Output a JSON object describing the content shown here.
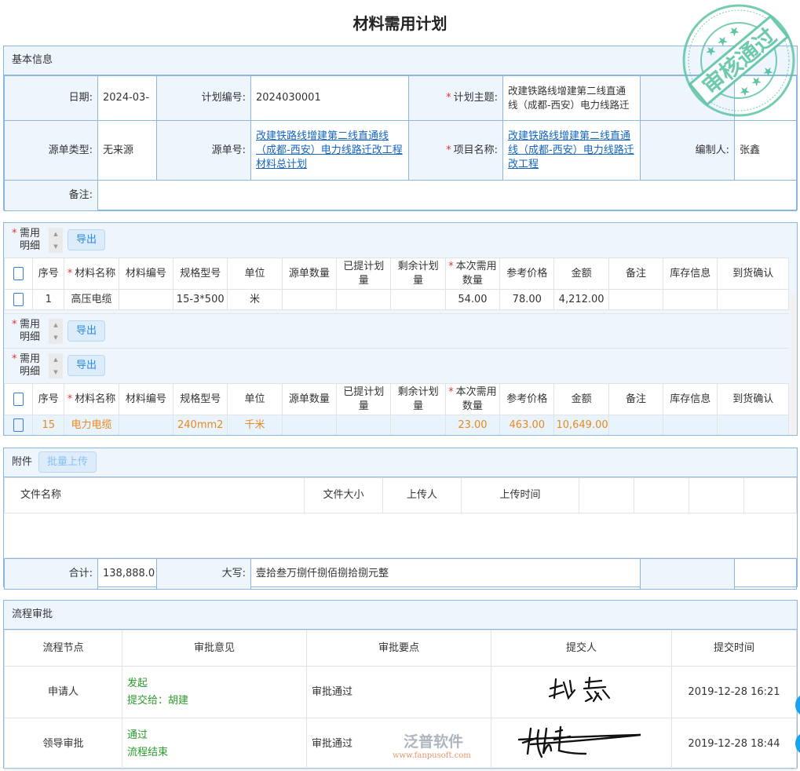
{
  "page_title": "材料需用计划",
  "stamp": {
    "text": "审核通过",
    "color": "#5fc4a6"
  },
  "basic": {
    "header": "基本信息",
    "date_label": "日期:",
    "date": "2024-03-",
    "code_label": "计划编号:",
    "code": "2024030001",
    "theme_label": "计划主题:",
    "theme": "改建铁路线增建第二线直通线（成都-西安）电力线路迁",
    "src_type_label": "源单类型:",
    "src_type": "无来源",
    "src_no_label": "源单号:",
    "src_no": "改建铁路线增建第二线直通线（成都-西安）电力线路迁改工程材料总计划",
    "project_label": "项目名称:",
    "project": "改建铁路线增建第二线直通线（成都-西安）电力线路迁改工程",
    "maker_label": "编制人:",
    "maker": "张鑫",
    "remark_label": "备注:"
  },
  "detail": {
    "label": "需用明细",
    "export": "导出",
    "columns": [
      "序号",
      "材料名称",
      "材料编号",
      "规格型号",
      "单位",
      "源单数量",
      "已提计划量",
      "剩余计划量",
      "本次需用数量",
      "参考价格",
      "金额",
      "备注",
      "库存信息",
      "到货确认"
    ],
    "required_columns": [
      1,
      8
    ],
    "rows": [
      {
        "no": "1",
        "name": "高压电缆",
        "code": "",
        "spec": "15-3*500",
        "unit": "米",
        "qty": "54.00",
        "price": "78.00",
        "amount": "4,212.00"
      },
      {
        "no": "15",
        "name": "电力电缆",
        "code": "",
        "spec": "240mm2",
        "unit": "千米",
        "qty": "23.00",
        "price": "463.00",
        "amount": "10,649.00"
      }
    ]
  },
  "attach": {
    "header": "附件",
    "upload": "批量上传",
    "columns": [
      "文件名称",
      "文件大小",
      "上传人",
      "上传时间"
    ],
    "total_label": "合计:",
    "total": "138,888.0",
    "caps_label": "大写:",
    "caps": "壹拾叁万捌仟捌佰捌拾捌元整"
  },
  "approval": {
    "header": "流程审批",
    "columns": [
      "流程节点",
      "审批意见",
      "审批要点",
      "提交人",
      "提交时间"
    ],
    "rows": [
      {
        "node": "申请人",
        "opinion": [
          "发起",
          "提交给：胡建"
        ],
        "point": "审批通过",
        "signer": "张鑫",
        "time": "2019-12-28 16:21"
      },
      {
        "node": "领导审批",
        "opinion": [
          "通过",
          "流程结束"
        ],
        "point": "审批通过",
        "signer": "胡建",
        "time": "2019-12-28 18:44"
      }
    ]
  },
  "watermark": {
    "brand": "泛普软件",
    "url": "www.fanpusoft.com"
  }
}
